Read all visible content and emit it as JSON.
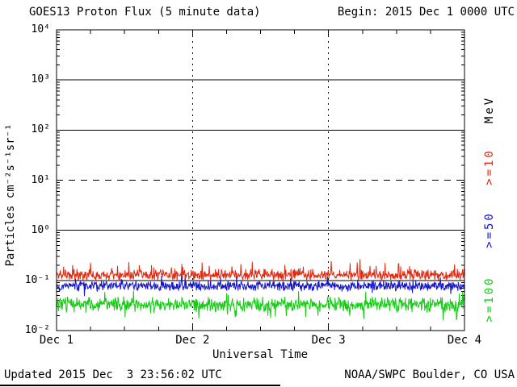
{
  "header": {
    "title": "GOES13 Proton Flux (5 minute data)",
    "begin": "Begin: 2015 Dec 1 0000 UTC"
  },
  "footer": {
    "updated": "Updated 2015 Dec  3 23:56:02 UTC",
    "credit": "NOAA/SWPC Boulder, CO USA"
  },
  "chart_data": {
    "type": "line",
    "title": "GOES13 Proton Flux (5 minute data)",
    "xlabel": "Universal Time",
    "ylabel": "Particles cm⁻²s⁻¹sr⁻¹",
    "unit_label": "MeV",
    "y_scale": "log10",
    "ylim": [
      0.01,
      10000
    ],
    "y_tick_exponents": [
      4,
      3,
      2,
      1,
      0,
      -1,
      -2
    ],
    "y_tick_labels": [
      "10⁴",
      "10³",
      "10²",
      "10¹",
      "10⁰",
      "10⁻¹",
      "10⁻²"
    ],
    "x_tick_labels": [
      "Dec 1",
      "Dec 2",
      "Dec 3",
      "Dec 4"
    ],
    "x_range_days": 3,
    "cadence_minutes": 5,
    "points_per_series": 864,
    "grid": {
      "solid_exp": [
        3,
        2,
        0,
        -1
      ],
      "dashed_exp": [
        1
      ],
      "vertical_dashed_at_day": [
        1,
        2
      ]
    },
    "axis_color": "#000000",
    "series": [
      {
        "name": ">=10",
        "color": "#e02a12",
        "log10_center": -0.89,
        "log10_spread": 0.13,
        "spike_prob": 0.05,
        "spike_log10": 0.18,
        "dip_prob": 0.0,
        "dip_log10": 0.0,
        "approx_flux_range": [
          0.08,
          0.32
        ],
        "seed": 11
      },
      {
        "name": ">=50",
        "color": "#1515cc",
        "log10_center": -1.11,
        "log10_spread": 0.12,
        "spike_prob": 0.03,
        "spike_log10": 0.12,
        "dip_prob": 0.02,
        "dip_log10": 0.12,
        "approx_flux_range": [
          0.05,
          0.13
        ],
        "seed": 22
      },
      {
        "name": ">=100",
        "color": "#13cc13",
        "log10_center": -1.48,
        "log10_spread": 0.17,
        "spike_prob": 0.03,
        "spike_log10": 0.14,
        "dip_prob": 0.04,
        "dip_log10": 0.18,
        "approx_flux_range": [
          0.015,
          0.08
        ],
        "seed": 33
      }
    ]
  }
}
